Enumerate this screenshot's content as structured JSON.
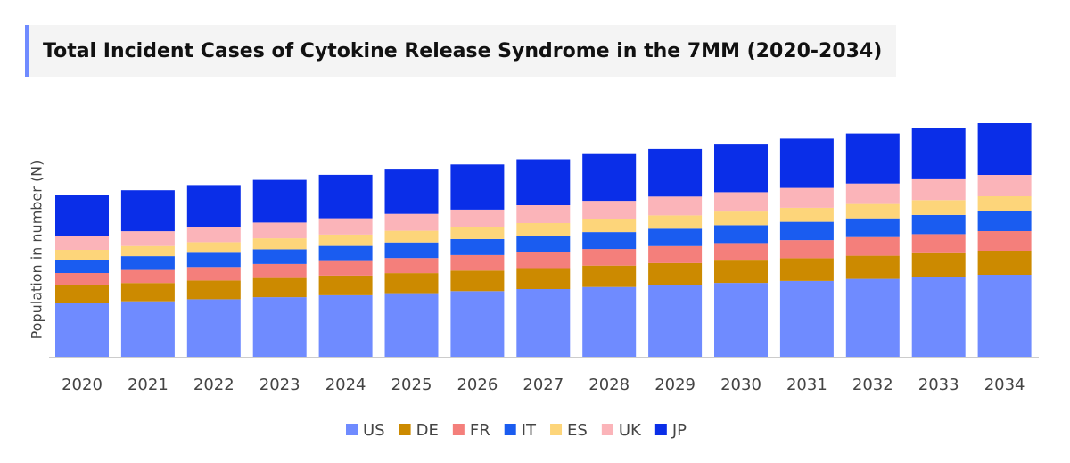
{
  "chart_data": {
    "type": "stacked_bar",
    "title": "Total Incident Cases of Cytokine Release Syndrome in the 7MM (2020-2034)",
    "y_label": "Population in number (N)",
    "categories": [
      "2020",
      "2021",
      "2022",
      "2023",
      "2024",
      "2025",
      "2026",
      "2027",
      "2028",
      "2029",
      "2030",
      "2031",
      "2032",
      "2033",
      "2034"
    ],
    "ylim": [
      0,
      300
    ],
    "series": [
      {
        "name": "US",
        "color": "#6f8bff",
        "values": [
          60,
          62.3,
          64.6,
          66.9,
          69.1,
          71.4,
          73.7,
          76,
          78.3,
          80.6,
          82.9,
          85.1,
          87.4,
          89.7,
          92
        ]
      },
      {
        "name": "DE",
        "color": "#cc8a00",
        "values": [
          20,
          20.5,
          21,
          21.5,
          22,
          22.5,
          23,
          23.5,
          24,
          24.5,
          25,
          25.5,
          26,
          26.5,
          27
        ]
      },
      {
        "name": "FR",
        "color": "#f47f7b",
        "values": [
          14,
          14.6,
          15.1,
          15.7,
          16.3,
          16.9,
          17.4,
          18,
          18.6,
          19.1,
          19.7,
          20.3,
          20.9,
          21.4,
          22
        ]
      },
      {
        "name": "IT",
        "color": "#1a5cf0",
        "values": [
          15,
          15.5,
          16,
          16.5,
          17,
          17.5,
          18,
          18.5,
          19,
          19.5,
          20,
          20.5,
          21,
          21.5,
          22
        ]
      },
      {
        "name": "ES",
        "color": "#fdd57a",
        "values": [
          11,
          11.4,
          11.9,
          12.3,
          12.7,
          13.1,
          13.6,
          14,
          14.4,
          14.9,
          15.3,
          15.7,
          16.1,
          16.6,
          17
        ]
      },
      {
        "name": "UK",
        "color": "#fbb4b9",
        "values": [
          16,
          16.6,
          17.1,
          17.7,
          18.3,
          18.9,
          19.4,
          20,
          20.6,
          21.1,
          21.7,
          22.3,
          22.9,
          23.4,
          24
        ]
      },
      {
        "name": "JP",
        "color": "#0a2ee8",
        "values": [
          45,
          45.9,
          46.9,
          47.8,
          48.7,
          49.6,
          50.6,
          51.5,
          52.4,
          53.4,
          54.3,
          55.2,
          56.1,
          57.1,
          58
        ]
      }
    ]
  }
}
